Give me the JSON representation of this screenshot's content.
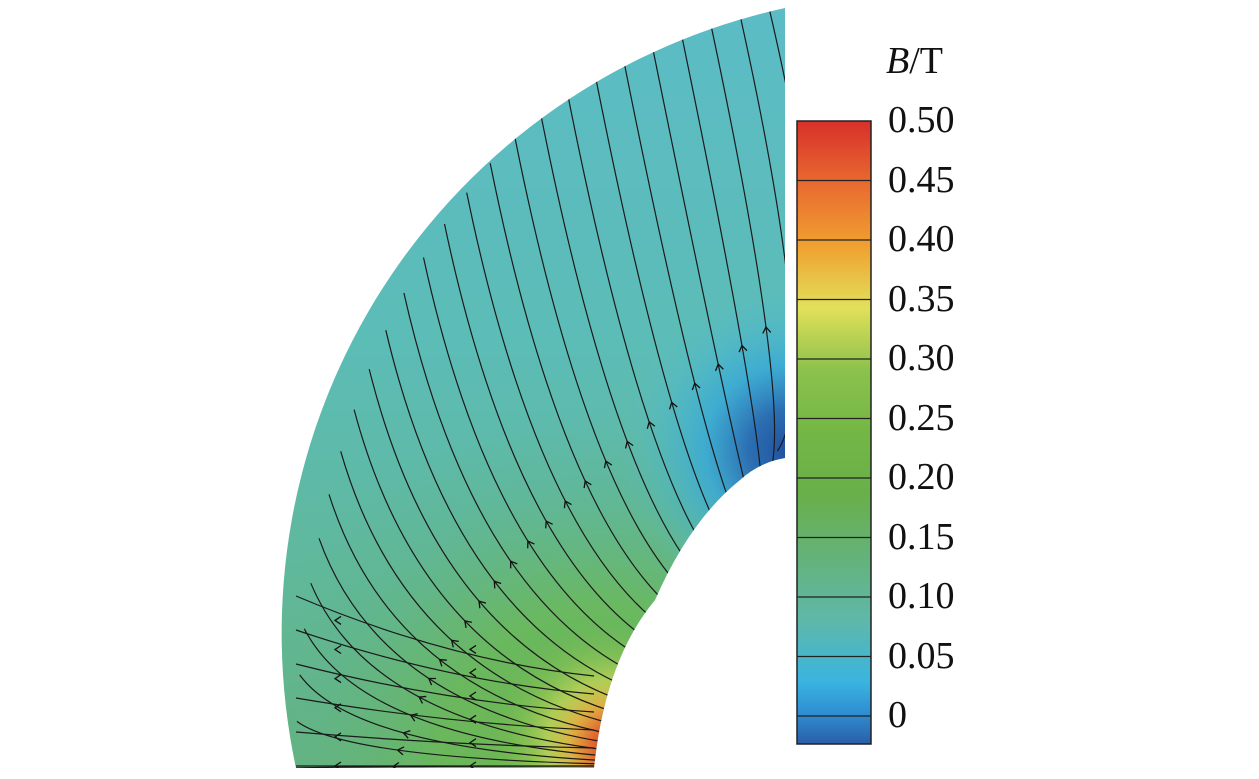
{
  "colorbar": {
    "quantity_symbol": "B",
    "unit_suffix": "/T",
    "ticks": [
      "0.50",
      "0.45",
      "0.40",
      "0.35",
      "0.30",
      "0.25",
      "0.20",
      "0.15",
      "0.10",
      "0.05",
      "0"
    ],
    "range": [
      0,
      0.5
    ],
    "colors": {
      "0.00": "#2a5ea8",
      "0.05": "#3ab4e0",
      "0.10": "#5fb8a8",
      "0.15": "#64b27a",
      "0.20": "#69b04a",
      "0.25": "#74b646",
      "0.30": "#8cc24c",
      "0.35": "#e2e05a",
      "0.40": "#f0a030",
      "0.45": "#e86a30",
      "0.50": "#d8302a"
    }
  },
  "plot": {
    "description_type": "magnetic flux density field with field lines in a quarter annulus region",
    "background_field_color": "#5bbcc6"
  }
}
